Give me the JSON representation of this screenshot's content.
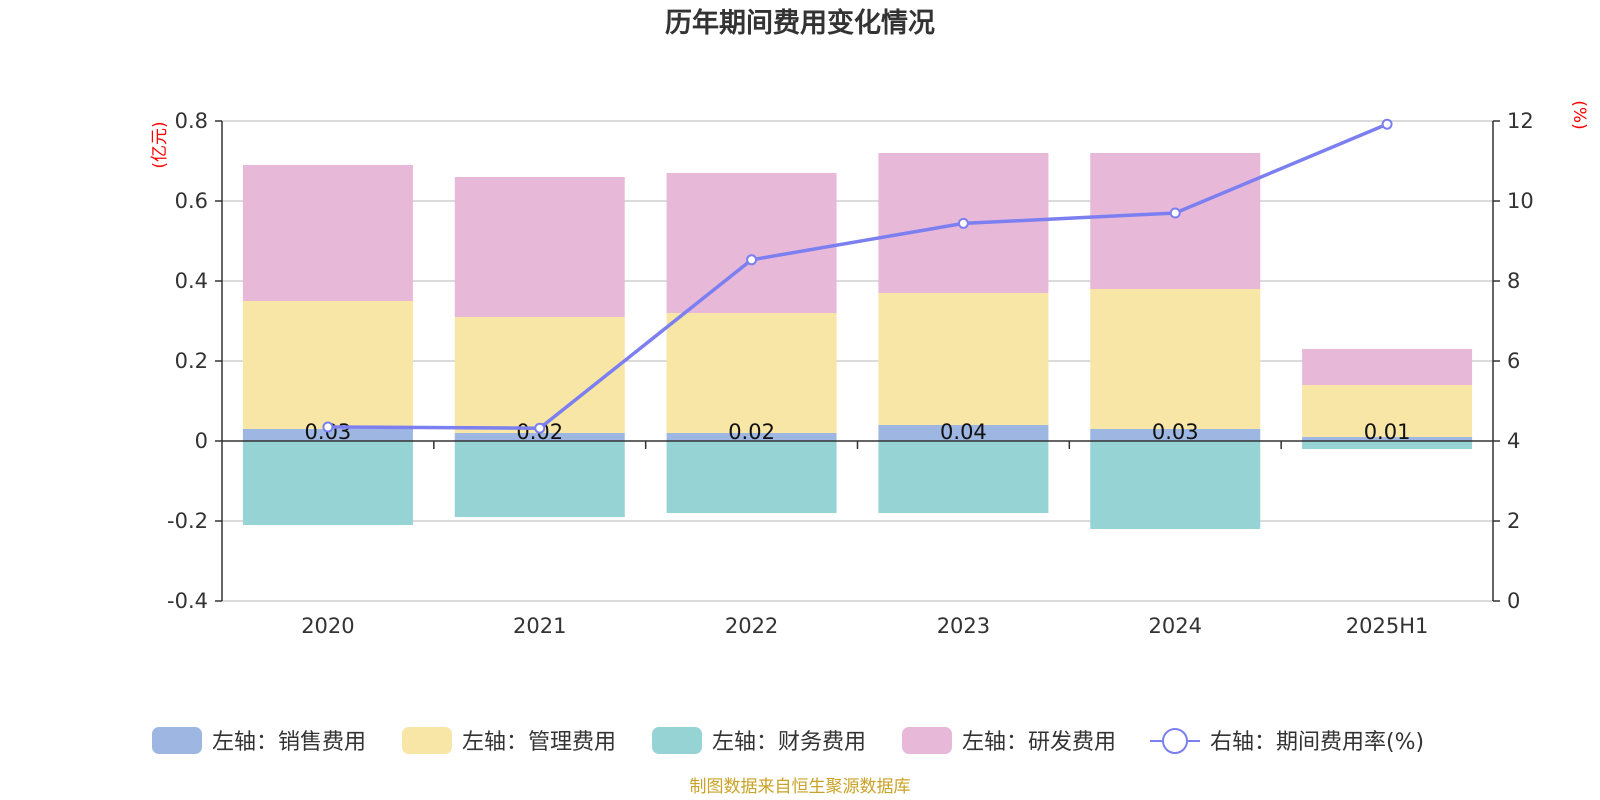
{
  "chart_data": {
    "type": "bar",
    "title": "历年期间费用变化情况",
    "left_axis_unit": "(亿元)",
    "right_axis_unit": "(%)",
    "categories": [
      "2020",
      "2021",
      "2022",
      "2023",
      "2024",
      "2025H1"
    ],
    "y_left": {
      "ylim": [
        -0.4,
        0.8
      ],
      "ticks": [
        -0.4,
        -0.2,
        0,
        0.2,
        0.4,
        0.6,
        0.8
      ],
      "tick_labels": [
        "-0.4",
        "-0.2",
        "0",
        "0.2",
        "0.4",
        "0.6",
        "0.8"
      ]
    },
    "y_right": {
      "ylim": [
        0,
        12
      ],
      "ticks": [
        0,
        2,
        4,
        6,
        8,
        10,
        12
      ],
      "tick_labels": [
        "0",
        "2",
        "4",
        "6",
        "8",
        "10",
        "12"
      ]
    },
    "grid": true,
    "stacked": true,
    "series": [
      {
        "name": "左轴：销售费用",
        "axis": "left",
        "type": "bar",
        "color": "#9db7e2",
        "values": [
          0.03,
          0.02,
          0.02,
          0.04,
          0.03,
          0.01
        ],
        "labels": [
          "0.03",
          "0.02",
          "0.02",
          "0.04",
          "0.03",
          "0.01"
        ]
      },
      {
        "name": "左轴：管理费用",
        "axis": "left",
        "type": "bar",
        "color": "#f8e6a6",
        "values": [
          0.32,
          0.29,
          0.3,
          0.33,
          0.35,
          0.13
        ]
      },
      {
        "name": "左轴：财务费用",
        "axis": "left",
        "type": "bar",
        "color": "#96d3d4",
        "values": [
          -0.21,
          -0.19,
          -0.18,
          -0.18,
          -0.22,
          -0.02
        ]
      },
      {
        "name": "左轴：研发费用",
        "axis": "left",
        "type": "bar",
        "color": "#e8b8d9",
        "values": [
          0.34,
          0.35,
          0.35,
          0.35,
          0.34,
          0.09
        ]
      },
      {
        "name": "右轴：期间费用率(%)",
        "axis": "right",
        "type": "line",
        "color": "#7b7ff0",
        "values": [
          4.35,
          4.32,
          8.53,
          9.44,
          9.7,
          11.92
        ]
      }
    ],
    "legend_position": "bottom"
  },
  "source_text": "制图数据来自恒生聚源数据库"
}
